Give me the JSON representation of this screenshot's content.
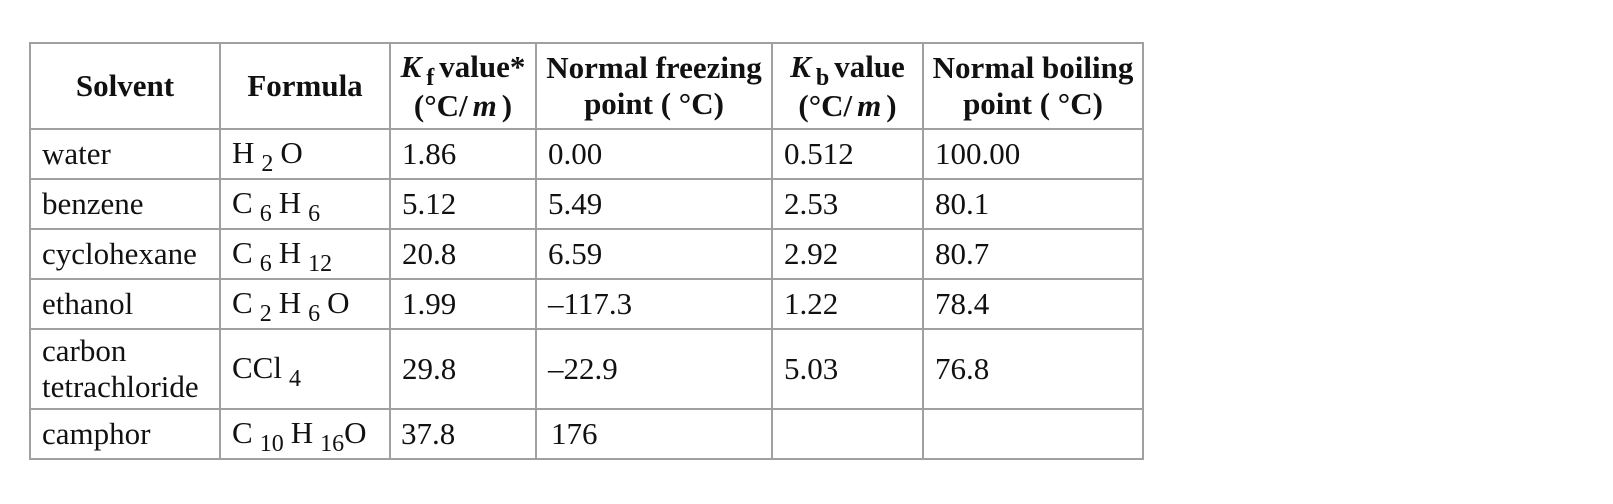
{
  "table": {
    "headers": {
      "solvent": "Solvent",
      "formula": "Formula",
      "kf_symbol": "K",
      "kf_sub": "f",
      "kf_rest": "value*",
      "kf_unit_pre": "(°C/",
      "kf_unit_m": "m",
      "kf_unit_post": ")",
      "fp_line1": "Normal freezing",
      "fp_line2": "point ( °C)",
      "kb_symbol": "K",
      "kb_sub": "b",
      "kb_rest": "value",
      "kb_unit_pre": "(°C/",
      "kb_unit_m": "m",
      "kb_unit_post": ")",
      "bp_line1": "Normal boiling",
      "bp_line2": "point ( °C)"
    },
    "rows": [
      {
        "solvent": "water",
        "formula": [
          [
            "H",
            "2"
          ],
          [
            "O",
            ""
          ]
        ],
        "kf": "1.86",
        "fp": "0.00",
        "kb": "0.512",
        "bp": "100.00"
      },
      {
        "solvent": "benzene",
        "formula": [
          [
            "C",
            "6"
          ],
          [
            "H",
            "6"
          ]
        ],
        "kf": "5.12",
        "fp": "5.49",
        "kb": "2.53",
        "bp": "80.1"
      },
      {
        "solvent": "cyclohexane",
        "formula": [
          [
            "C",
            "6"
          ],
          [
            "H",
            "12"
          ]
        ],
        "kf": "20.8",
        "fp": "6.59",
        "kb": "2.92",
        "bp": "80.7"
      },
      {
        "solvent": "ethanol",
        "formula": [
          [
            "C",
            "2"
          ],
          [
            "H",
            "6"
          ],
          [
            "O",
            ""
          ]
        ],
        "kf": "1.99",
        "fp": "–117.3",
        "kb": "1.22",
        "bp": "78.4"
      },
      {
        "solvent_line1": "carbon",
        "solvent_line2": "tetrachloride",
        "formula": [
          [
            "CCl",
            "4"
          ]
        ],
        "kf": "29.8",
        "fp": "–22.9",
        "kb": "5.03",
        "bp": "76.8"
      },
      {
        "solvent": "camphor",
        "formula": [
          [
            "C",
            "10"
          ],
          [
            "H",
            "16"
          ],
          [
            "O",
            ""
          ]
        ],
        "kf": "37.8",
        "fp": "176",
        "kb": "",
        "bp": ""
      }
    ]
  }
}
